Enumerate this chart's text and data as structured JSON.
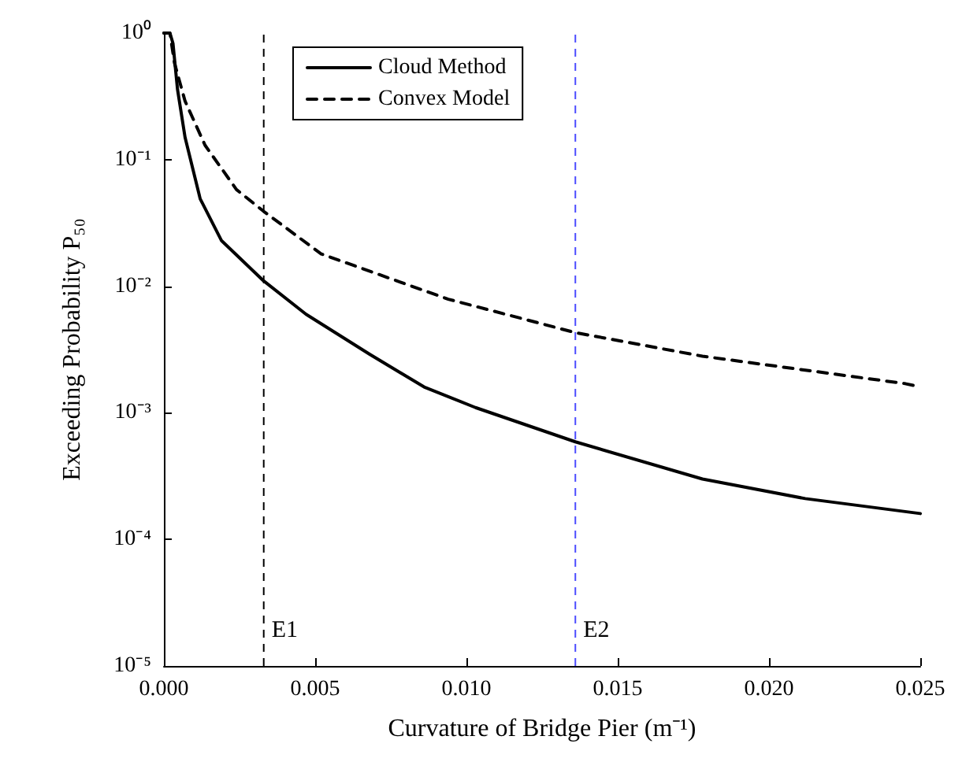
{
  "chart_data": {
    "type": "line",
    "xlabel": "Curvature of Bridge Pier (m⁻¹)",
    "ylabel": "Exceeding Probability P₅₀",
    "log": "y",
    "grid": false,
    "legend": "top",
    "marker": "none",
    "xlim": [
      0,
      0.025
    ],
    "xticks": [
      {
        "value": 0,
        "label": "0.000"
      },
      0.005,
      {
        "value": 0.01,
        "label": "0.010"
      },
      0.015,
      {
        "value": 0.02,
        "label": "0.020"
      },
      0.025
    ],
    "ylim": [
      1e-05,
      1
    ],
    "yticks": [
      {
        "value": 1e-05,
        "label": "10⁻⁵"
      },
      {
        "value": 0.0001,
        "label": "10⁻⁴"
      },
      {
        "value": 0.001,
        "label": "10⁻³"
      },
      {
        "value": 0.01,
        "label": "10⁻²"
      },
      {
        "value": 0.1,
        "label": "10⁻¹"
      },
      {
        "value": 1,
        "label": "10⁰"
      }
    ],
    "series": [
      {
        "name": "Cloud Method",
        "color": "#000000",
        "line_style": "solid",
        "x": [
          0,
          0.0002,
          0.0003,
          0.00045,
          0.0007,
          0.0012,
          0.0019,
          0.0033,
          0.0047,
          0.0068,
          0.0086,
          0.0103,
          0.0136,
          0.0178,
          0.0212,
          0.025
        ],
        "values": [
          1,
          1,
          0.83,
          0.36,
          0.15,
          0.049,
          0.023,
          0.011,
          0.006,
          0.0029,
          0.0016,
          0.0011,
          0.00059,
          0.0003,
          0.00021,
          0.00016
        ]
      },
      {
        "name": "Convex Model",
        "color": "#000000",
        "line_style": "dashed",
        "x": [
          0,
          0.0002,
          0.00035,
          0.0007,
          0.00136,
          0.0024,
          0.0033,
          0.0052,
          0.0094,
          0.0136,
          0.0178,
          0.0245,
          0.025
        ],
        "values": [
          1,
          1,
          0.58,
          0.29,
          0.13,
          0.058,
          0.039,
          0.018,
          0.0079,
          0.0043,
          0.0028,
          0.0017,
          0.0016
        ]
      }
    ],
    "ref_lines": [
      {
        "axis": "x",
        "value": 0.0033,
        "label": "E1",
        "color": "#000000",
        "line_style": "dashed"
      },
      {
        "axis": "x",
        "value": 0.0136,
        "label": "E2",
        "color": "#4c4cff",
        "line_style": "dashed"
      }
    ]
  }
}
